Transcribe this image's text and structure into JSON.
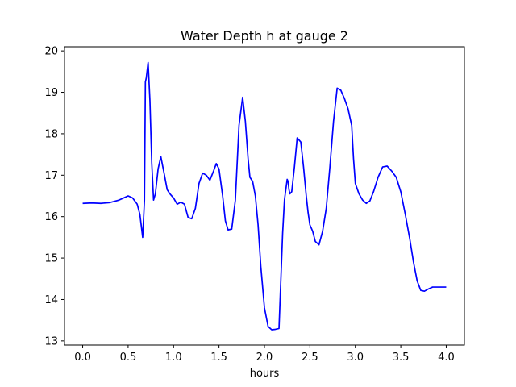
{
  "chart_data": {
    "type": "line",
    "title": "Water Depth h at gauge 2",
    "xlabel": "hours",
    "ylabel": "",
    "xlim": [
      -0.2,
      4.2
    ],
    "ylim": [
      12.9,
      20.1
    ],
    "xticks": [
      0.0,
      0.5,
      1.0,
      1.5,
      2.0,
      2.5,
      3.0,
      3.5,
      4.0
    ],
    "xtick_labels": [
      "0.0",
      "0.5",
      "1.0",
      "1.5",
      "2.0",
      "2.5",
      "3.0",
      "3.5",
      "4.0"
    ],
    "yticks": [
      13,
      14,
      15,
      16,
      17,
      18,
      19,
      20
    ],
    "ytick_labels": [
      "13",
      "14",
      "15",
      "16",
      "17",
      "18",
      "19",
      "20"
    ],
    "grid": false,
    "series": [
      {
        "color": "#0000ff",
        "x": [
          0.0,
          0.1,
          0.2,
          0.3,
          0.4,
          0.45,
          0.5,
          0.55,
          0.6,
          0.63,
          0.66,
          0.68,
          0.69,
          0.7,
          0.72,
          0.74,
          0.76,
          0.78,
          0.8,
          0.83,
          0.86,
          0.9,
          0.93,
          0.96,
          1.0,
          1.04,
          1.08,
          1.12,
          1.16,
          1.2,
          1.24,
          1.28,
          1.32,
          1.36,
          1.4,
          1.44,
          1.47,
          1.5,
          1.54,
          1.57,
          1.6,
          1.64,
          1.68,
          1.72,
          1.76,
          1.79,
          1.82,
          1.84,
          1.87,
          1.9,
          1.93,
          1.96,
          2.0,
          2.04,
          2.08,
          2.12,
          2.16,
          2.2,
          2.22,
          2.25,
          2.26,
          2.27,
          2.28,
          2.3,
          2.33,
          2.36,
          2.4,
          2.43,
          2.46,
          2.48,
          2.5,
          2.53,
          2.56,
          2.6,
          2.64,
          2.68,
          2.72,
          2.76,
          2.8,
          2.84,
          2.88,
          2.92,
          2.96,
          2.98,
          3.0,
          3.04,
          3.08,
          3.12,
          3.16,
          3.2,
          3.25,
          3.3,
          3.35,
          3.4,
          3.45,
          3.5,
          3.55,
          3.6,
          3.64,
          3.68,
          3.72,
          3.76,
          3.8,
          3.85,
          3.9,
          3.95,
          4.0
        ],
        "y": [
          16.32,
          16.33,
          16.32,
          16.34,
          16.4,
          16.45,
          16.5,
          16.45,
          16.3,
          16.05,
          15.5,
          16.4,
          19.25,
          19.35,
          19.72,
          18.8,
          17.3,
          16.4,
          16.55,
          17.15,
          17.45,
          17.0,
          16.65,
          16.55,
          16.45,
          16.3,
          16.35,
          16.3,
          15.98,
          15.95,
          16.2,
          16.8,
          17.05,
          17.0,
          16.88,
          17.1,
          17.28,
          17.15,
          16.5,
          15.9,
          15.68,
          15.7,
          16.4,
          18.2,
          18.88,
          18.3,
          17.4,
          16.95,
          16.85,
          16.5,
          15.8,
          14.8,
          13.8,
          13.35,
          13.27,
          13.28,
          13.3,
          15.6,
          16.4,
          16.9,
          16.85,
          16.65,
          16.55,
          16.6,
          17.2,
          17.9,
          17.8,
          17.2,
          16.5,
          16.1,
          15.8,
          15.65,
          15.4,
          15.32,
          15.65,
          16.2,
          17.2,
          18.3,
          19.1,
          19.05,
          18.85,
          18.6,
          18.2,
          17.4,
          16.8,
          16.55,
          16.4,
          16.32,
          16.38,
          16.6,
          16.95,
          17.2,
          17.22,
          17.1,
          16.95,
          16.6,
          16.05,
          15.45,
          14.9,
          14.45,
          14.22,
          14.2,
          14.25,
          14.3,
          14.3,
          14.3,
          14.3
        ]
      }
    ]
  }
}
